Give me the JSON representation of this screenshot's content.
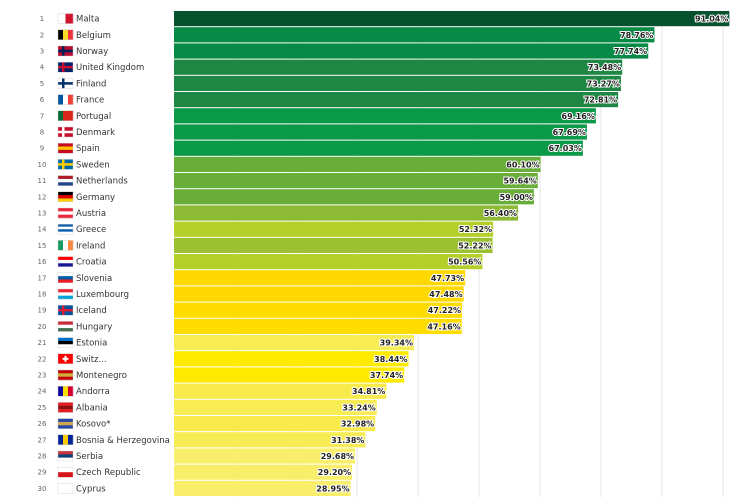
{
  "chart_data": {
    "type": "bar",
    "orientation": "horizontal",
    "xlim": [
      0,
      90
    ],
    "grid": true,
    "value_suffix": "%",
    "rows": [
      {
        "rank": "1",
        "name": "Malta",
        "value": 91.04,
        "color": "#06522f",
        "flag": {
          "dir": "v",
          "colors": [
            "#ffffff",
            "#cf142b"
          ]
        }
      },
      {
        "rank": "2",
        "name": "Belgium",
        "value": 78.76,
        "color": "#078a45",
        "flag": {
          "dir": "v",
          "colors": [
            "#000000",
            "#fdda24",
            "#ef3340"
          ]
        }
      },
      {
        "rank": "3",
        "name": "Norway",
        "value": 77.74,
        "color": "#078a45",
        "flag": {
          "dir": "cross",
          "colors": [
            "#ba0c2f",
            "#00205b"
          ]
        }
      },
      {
        "rank": "4",
        "name": "United Kingdom",
        "value": 73.48,
        "color": "#1f8744",
        "flag": {
          "dir": "cross",
          "colors": [
            "#012169",
            "#c8102e"
          ]
        }
      },
      {
        "rank": "5",
        "name": "Finland",
        "value": 73.27,
        "color": "#1f8744",
        "flag": {
          "dir": "cross",
          "colors": [
            "#ffffff",
            "#002f6c"
          ]
        }
      },
      {
        "rank": "6",
        "name": "France",
        "value": 72.81,
        "color": "#1f8744",
        "flag": {
          "dir": "v",
          "colors": [
            "#0055a4",
            "#ffffff",
            "#ef4135"
          ]
        }
      },
      {
        "rank": "7",
        "name": "Portugal",
        "value": 69.16,
        "color": "#0a9947",
        "flag": {
          "dir": "v",
          "colors": [
            "#046a38",
            "#da291c",
            "#da291c"
          ]
        }
      },
      {
        "rank": "8",
        "name": "Denmark",
        "value": 67.69,
        "color": "#0a9947",
        "flag": {
          "dir": "cross",
          "colors": [
            "#c8102e",
            "#ffffff"
          ]
        }
      },
      {
        "rank": "9",
        "name": "Spain",
        "value": 67.03,
        "color": "#0a9947",
        "flag": {
          "dir": "h",
          "colors": [
            "#c60b1e",
            "#ffc400",
            "#c60b1e"
          ]
        }
      },
      {
        "rank": "10",
        "name": "Sweden",
        "value": 60.1,
        "color": "#6aae3a",
        "flag": {
          "dir": "cross",
          "colors": [
            "#006aa7",
            "#fecc00"
          ]
        }
      },
      {
        "rank": "11",
        "name": "Netherlands",
        "value": 59.64,
        "color": "#6aae3a",
        "flag": {
          "dir": "h",
          "colors": [
            "#ae1c28",
            "#ffffff",
            "#21468b"
          ]
        }
      },
      {
        "rank": "12",
        "name": "Germany",
        "value": 59.0,
        "color": "#6aae3a",
        "flag": {
          "dir": "h",
          "colors": [
            "#000000",
            "#dd0000",
            "#ffce00"
          ]
        }
      },
      {
        "rank": "13",
        "name": "Austria",
        "value": 56.4,
        "color": "#8dba34",
        "flag": {
          "dir": "h",
          "colors": [
            "#ed2939",
            "#ffffff",
            "#ed2939"
          ]
        }
      },
      {
        "rank": "14",
        "name": "Greece",
        "value": 52.32,
        "color": "#b5cf2a",
        "flag": {
          "dir": "h",
          "colors": [
            "#0d5eaf",
            "#ffffff",
            "#0d5eaf",
            "#ffffff"
          ]
        }
      },
      {
        "rank": "15",
        "name": "Ireland",
        "value": 52.22,
        "color": "#9cc130",
        "flag": {
          "dir": "v",
          "colors": [
            "#169b62",
            "#ffffff",
            "#ff883e"
          ]
        }
      },
      {
        "rank": "16",
        "name": "Croatia",
        "value": 50.56,
        "color": "#b5cf2a",
        "flag": {
          "dir": "h",
          "colors": [
            "#ff0000",
            "#ffffff",
            "#171796"
          ]
        }
      },
      {
        "rank": "17",
        "name": "Slovenia",
        "value": 47.73,
        "color": "#ffd800",
        "flag": {
          "dir": "h",
          "colors": [
            "#ffffff",
            "#005da4",
            "#ed1c24"
          ]
        }
      },
      {
        "rank": "18",
        "name": "Luxembourg",
        "value": 47.48,
        "color": "#ffd800",
        "flag": {
          "dir": "h",
          "colors": [
            "#ed2939",
            "#ffffff",
            "#00a1de"
          ]
        }
      },
      {
        "rank": "19",
        "name": "Iceland",
        "value": 47.22,
        "color": "#ffdc00",
        "flag": {
          "dir": "cross",
          "colors": [
            "#02529c",
            "#dc1e35"
          ]
        }
      },
      {
        "rank": "20",
        "name": "Hungary",
        "value": 47.16,
        "color": "#ffdc00",
        "flag": {
          "dir": "h",
          "colors": [
            "#ce2939",
            "#ffffff",
            "#477050"
          ]
        }
      },
      {
        "rank": "21",
        "name": "Estonia",
        "value": 39.34,
        "color": "#f8ec55",
        "flag": {
          "dir": "h",
          "colors": [
            "#0072ce",
            "#000000",
            "#ffffff"
          ]
        }
      },
      {
        "rank": "22",
        "name": "Switz...",
        "value": 38.44,
        "color": "#ffea00",
        "flag": {
          "dir": "plus",
          "colors": [
            "#ff0000",
            "#ffffff"
          ]
        }
      },
      {
        "rank": "23",
        "name": "Montenegro",
        "value": 37.74,
        "color": "#ffea00",
        "flag": {
          "dir": "h",
          "colors": [
            "#c40308",
            "#d4af37",
            "#c40308"
          ]
        }
      },
      {
        "rank": "24",
        "name": "Andorra",
        "value": 34.81,
        "color": "#f8ea4a",
        "flag": {
          "dir": "v",
          "colors": [
            "#10069f",
            "#fedd00",
            "#d50032"
          ]
        }
      },
      {
        "rank": "25",
        "name": "Albania",
        "value": 33.24,
        "color": "#f8ec55",
        "flag": {
          "dir": "h",
          "colors": [
            "#e41e20",
            "#8a1012",
            "#e41e20"
          ]
        }
      },
      {
        "rank": "26",
        "name": "Kosovo*",
        "value": 32.98,
        "color": "#f8ea4a",
        "flag": {
          "dir": "h",
          "colors": [
            "#244aa5",
            "#d0a650",
            "#244aa5"
          ]
        }
      },
      {
        "rank": "27",
        "name": "Bosnia & Herzegovina",
        "value": 31.38,
        "color": "#f8ec55",
        "flag": {
          "dir": "v",
          "colors": [
            "#002395",
            "#fecb00",
            "#002395"
          ]
        }
      },
      {
        "rank": "28",
        "name": "Serbia",
        "value": 29.68,
        "color": "#f8ee6a",
        "flag": {
          "dir": "h",
          "colors": [
            "#c6363c",
            "#0c4076",
            "#ffffff"
          ]
        }
      },
      {
        "rank": "29",
        "name": "Czech Republic",
        "value": 29.2,
        "color": "#f8ee6a",
        "flag": {
          "dir": "h",
          "colors": [
            "#ffffff",
            "#d7141a"
          ]
        }
      },
      {
        "rank": "30",
        "name": "Cyprus",
        "value": 28.95,
        "color": "#f8ee6a",
        "flag": {
          "dir": "h",
          "colors": [
            "#ffffff",
            "#ffffff"
          ]
        }
      }
    ]
  }
}
